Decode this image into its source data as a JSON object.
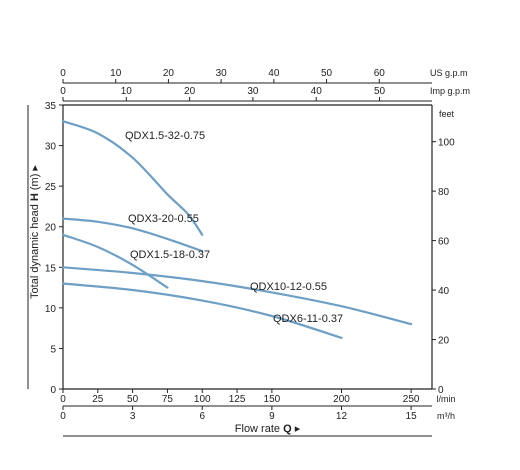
{
  "chart_data": {
    "type": "line",
    "x_axis": {
      "label": "Flow rate",
      "label_bold": "Q",
      "arrow": "▸",
      "lmin": {
        "unit": "l/min",
        "range": [
          0,
          265
        ],
        "ticks": [
          0,
          25,
          50,
          75,
          100,
          125,
          150,
          200,
          250
        ]
      },
      "m3h": {
        "unit": "m³/h",
        "ticks": [
          0,
          3,
          6,
          9,
          12,
          15
        ]
      },
      "us_gpm": {
        "unit": "US g.p.m",
        "ticks": [
          0,
          10,
          20,
          30,
          40,
          50,
          60
        ]
      },
      "imp_gpm": {
        "unit": "Imp g.p.m",
        "ticks": [
          0,
          10,
          20,
          30,
          40,
          50
        ]
      }
    },
    "y_axis": {
      "label": "Total dynamic head",
      "label_bold": "H",
      "label_unit": "(m)",
      "arrow": "▸",
      "range": [
        0,
        35
      ],
      "ticks": [
        0,
        5,
        10,
        15,
        20,
        25,
        30,
        35
      ]
    },
    "y2_axis": {
      "unit": "feet",
      "ticks": [
        0,
        20,
        40,
        60,
        80,
        100
      ]
    },
    "grid": false,
    "series_color": "#6e9fc4",
    "series": [
      {
        "name": "QDX1.5-32-0.75",
        "x": [
          0,
          25,
          50,
          75,
          90,
          100
        ],
        "y": [
          33,
          31.5,
          28.5,
          24,
          21.5,
          19
        ]
      },
      {
        "name": "QDX3-20-0.55",
        "x": [
          0,
          25,
          50,
          75,
          100
        ],
        "y": [
          21,
          20.6,
          19.8,
          18.5,
          17
        ]
      },
      {
        "name": "QDX1.5-18-0.37",
        "x": [
          0,
          25,
          50,
          75
        ],
        "y": [
          19,
          17.5,
          15.3,
          12.5
        ]
      },
      {
        "name": "QDX10-12-0.55",
        "x": [
          0,
          50,
          100,
          150,
          200,
          250
        ],
        "y": [
          15,
          14.3,
          13.3,
          11.9,
          10.2,
          8
        ]
      },
      {
        "name": "QDX6-11-0.37",
        "x": [
          0,
          50,
          100,
          150,
          200
        ],
        "y": [
          13,
          12.2,
          10.9,
          9,
          6.3
        ]
      }
    ]
  }
}
